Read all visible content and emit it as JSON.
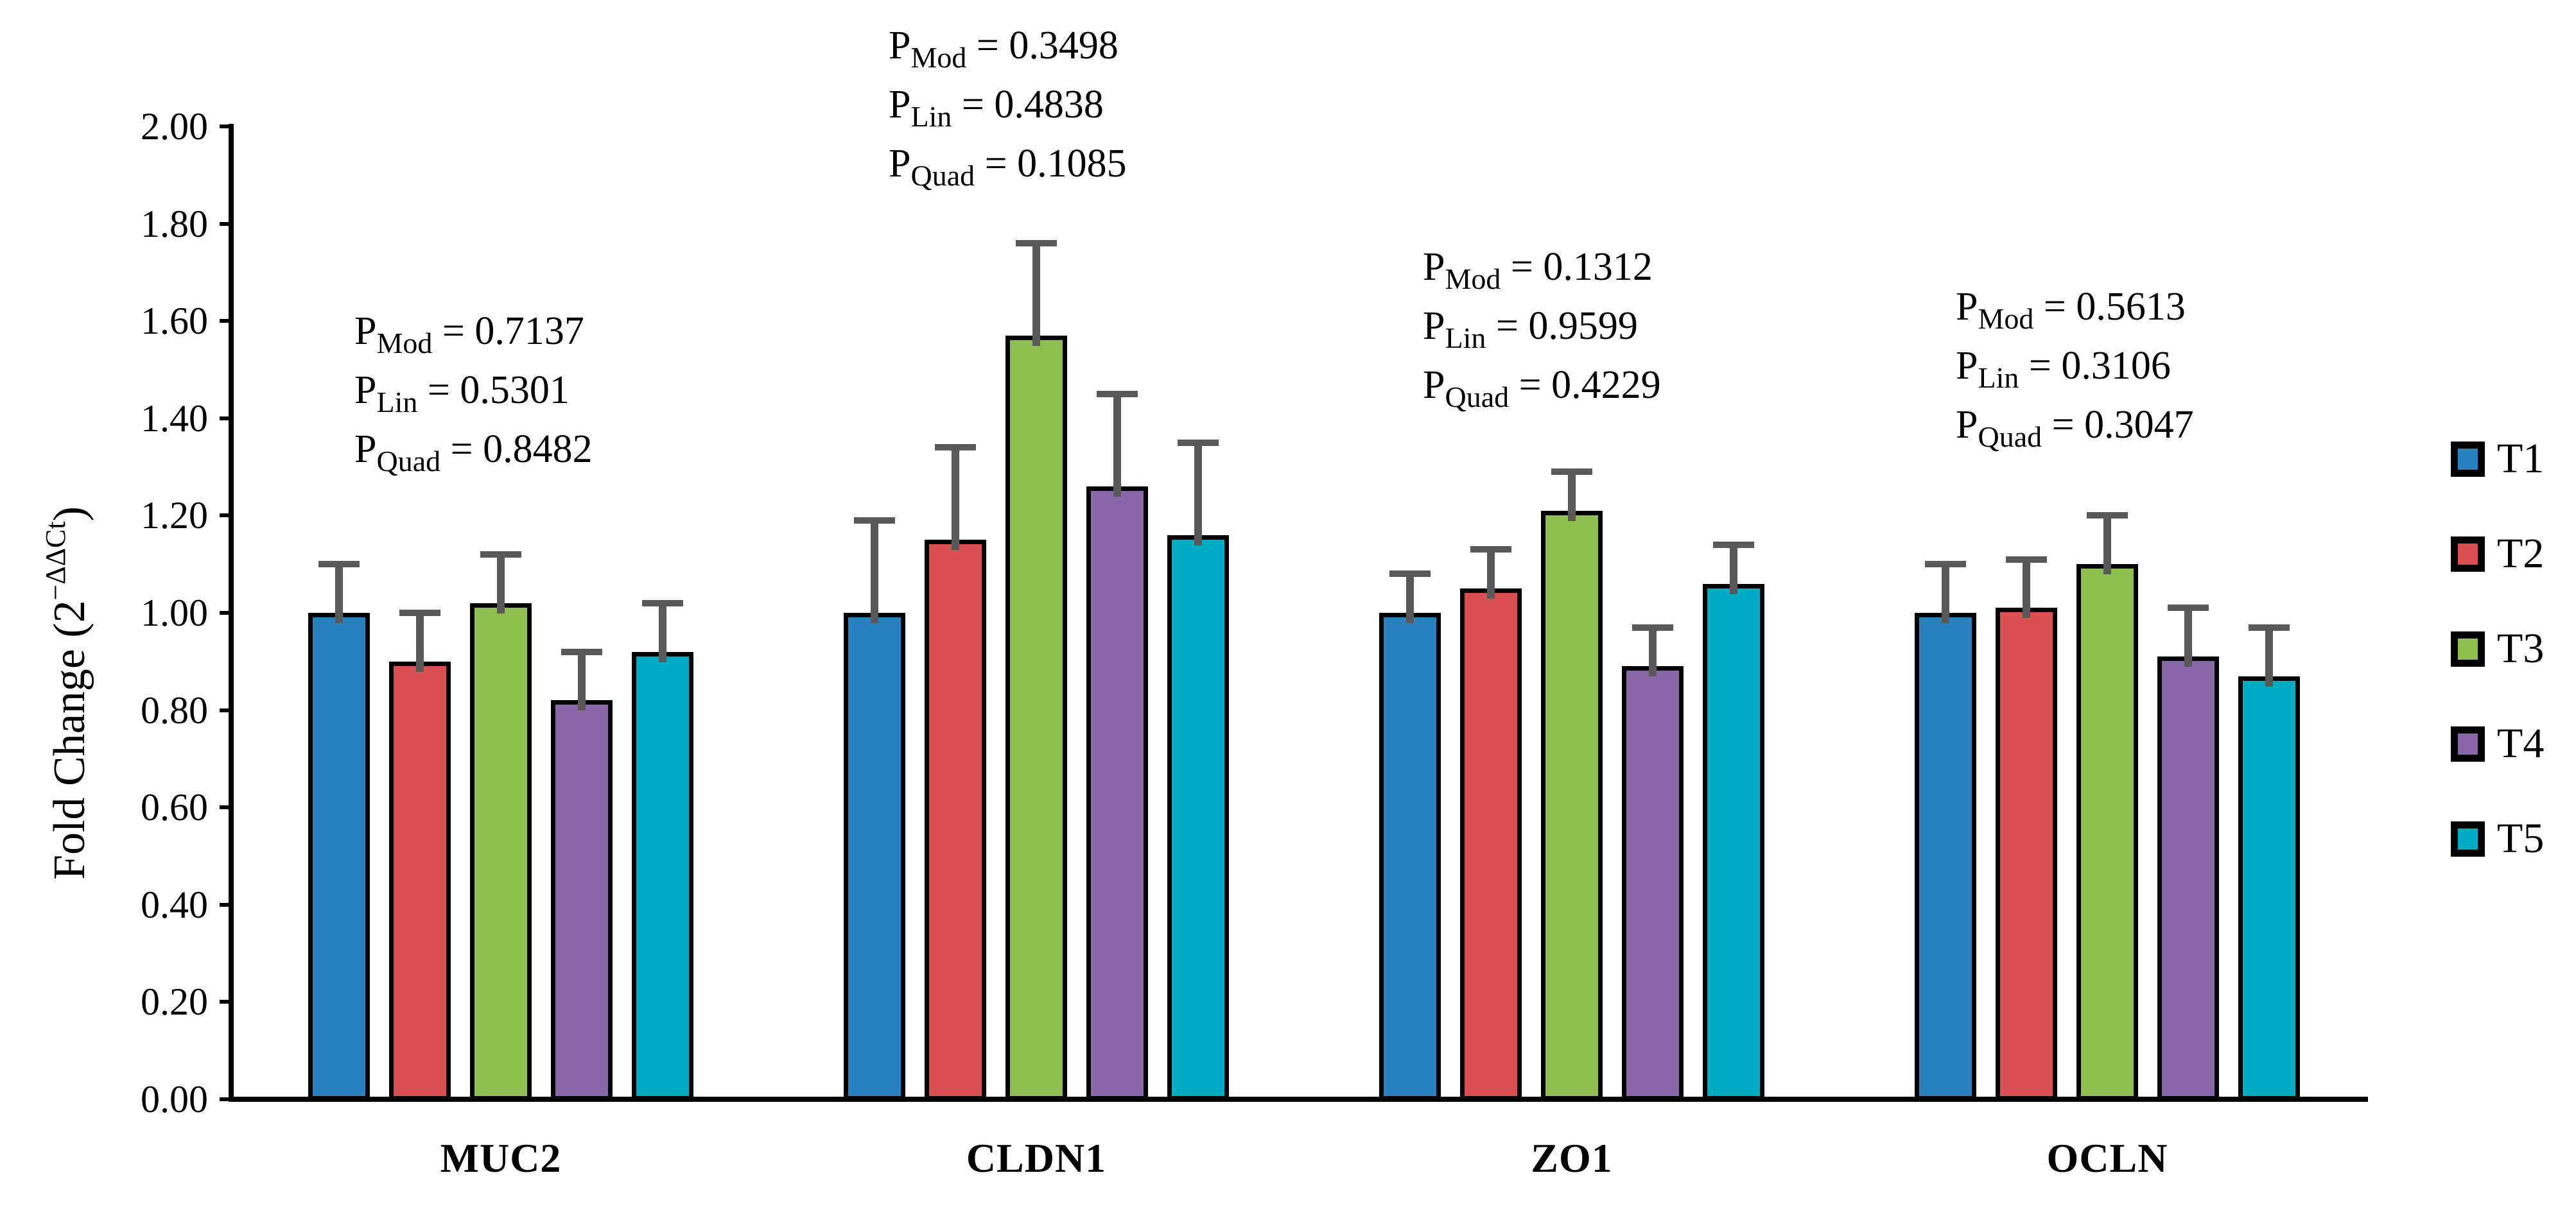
{
  "chart_data": {
    "type": "bar",
    "title": "",
    "ylabel_base": "Fold Change (2",
    "ylabel_sup": "−ΔΔCt",
    "ylabel_end": ")",
    "ylim": [
      0.0,
      2.0
    ],
    "ytick_step": 0.2,
    "ytick_labels": [
      "0.00",
      "0.20",
      "0.40",
      "0.60",
      "0.80",
      "1.00",
      "1.20",
      "1.40",
      "1.60",
      "1.80",
      "2.00"
    ],
    "categories": [
      "MUC2",
      "CLDN1",
      "ZO1",
      "OCLN"
    ],
    "series": [
      {
        "name": "T1",
        "color": "#2981BF",
        "values": [
          1.0,
          1.0,
          1.0,
          1.0
        ],
        "errors": [
          0.1,
          0.19,
          0.08,
          0.1
        ]
      },
      {
        "name": "T2",
        "color": "#DA5050",
        "values": [
          0.9,
          1.15,
          1.05,
          1.01
        ],
        "errors": [
          0.1,
          0.19,
          0.08,
          0.1
        ]
      },
      {
        "name": "T3",
        "color": "#8DBF50",
        "values": [
          1.02,
          1.57,
          1.21,
          1.1
        ],
        "errors": [
          0.1,
          0.19,
          0.08,
          0.1
        ]
      },
      {
        "name": "T4",
        "color": "#8968A9",
        "values": [
          0.82,
          1.26,
          0.89,
          0.91
        ],
        "errors": [
          0.1,
          0.19,
          0.08,
          0.1
        ]
      },
      {
        "name": "T5",
        "color": "#00ACC4",
        "values": [
          0.92,
          1.16,
          1.06,
          0.87
        ],
        "errors": [
          0.1,
          0.19,
          0.08,
          0.1
        ]
      }
    ],
    "error_bar_color": "#595959",
    "bar_border_color": "#000000",
    "axis_color": "#000000",
    "grid": false,
    "legend_position": "right",
    "annotation_labels": {
      "p": "P",
      "mod": "Mod",
      "lin": "Lin",
      "quad": "Quad",
      "eq": " = "
    },
    "annotations": [
      {
        "category": "MUC2",
        "p_mod": "0.7137",
        "p_lin": "0.5301",
        "p_quad": "0.8482"
      },
      {
        "category": "CLDN1",
        "p_mod": "0.3498",
        "p_lin": "0.4838",
        "p_quad": "0.1085"
      },
      {
        "category": "ZO1",
        "p_mod": "0.1312",
        "p_lin": "0.9599",
        "p_quad": "0.4229"
      },
      {
        "category": "OCLN",
        "p_mod": "0.5613",
        "p_lin": "0.3106",
        "p_quad": "0.3047"
      }
    ]
  }
}
